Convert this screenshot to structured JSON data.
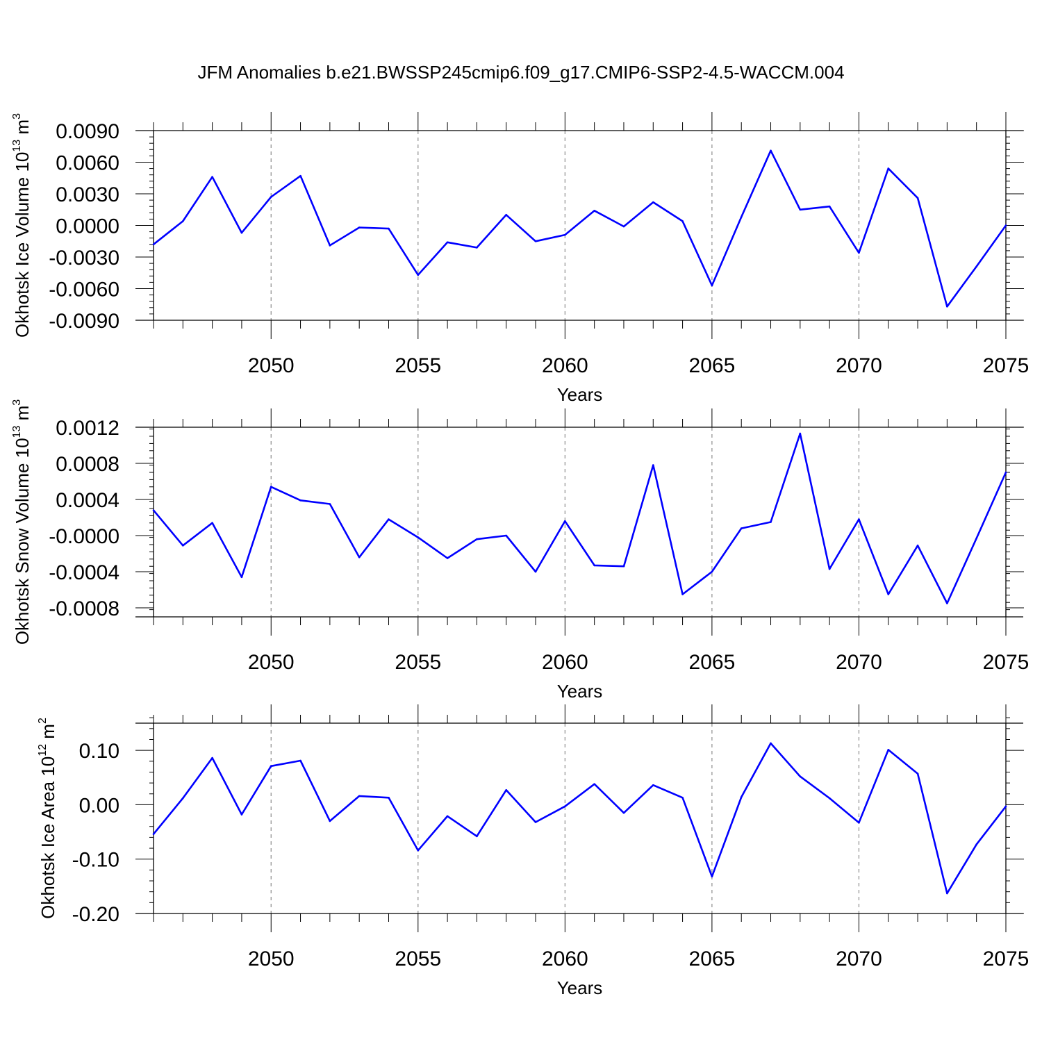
{
  "title": "JFM Anomalies b.e21.BWSSP245cmip6.f09_g17.CMIP6-SSP2-4.5-WACCM.004",
  "colors": {
    "line": "#0000ff",
    "grid": "#8c8c8c",
    "axis": "#000000"
  },
  "chart_data": [
    {
      "type": "line",
      "ylabel": "Okhotsk Ice Volume",
      "yunit_base": "10",
      "yunit_exp": "13",
      "yunit_m": "m",
      "yunit_m_exp": "3",
      "xlabel": "Years",
      "xlim": [
        2046,
        2075
      ],
      "ylim": [
        -0.009,
        0.009
      ],
      "xticks": [
        2050,
        2055,
        2060,
        2065,
        2070,
        2075
      ],
      "xtick_labels": [
        "2050",
        "2055",
        "2060",
        "2065",
        "2070",
        "2075"
      ],
      "yticks": [
        -0.009,
        -0.006,
        -0.003,
        0.0,
        0.003,
        0.006,
        0.009
      ],
      "ytick_labels": [
        "-0.0090",
        "-0.0060",
        "-0.0030",
        "0.0000",
        "0.0030",
        "0.0060",
        "0.0090"
      ],
      "x": [
        2046,
        2047,
        2048,
        2049,
        2050,
        2051,
        2052,
        2053,
        2054,
        2055,
        2056,
        2057,
        2058,
        2059,
        2060,
        2061,
        2062,
        2063,
        2064,
        2065,
        2066,
        2067,
        2068,
        2069,
        2070,
        2071,
        2072,
        2073,
        2074,
        2075
      ],
      "values": [
        -0.0018,
        0.0004,
        0.0046,
        -0.0007,
        0.0027,
        0.0047,
        -0.0019,
        -0.0002,
        -0.0003,
        -0.0047,
        -0.0016,
        -0.0021,
        0.001,
        -0.0015,
        -0.0009,
        0.0014,
        -0.0001,
        0.0022,
        0.0004,
        -0.0057,
        0.0008,
        0.0071,
        0.0015,
        0.0018,
        -0.0026,
        0.0054,
        0.0026,
        -0.0077,
        -0.0039,
        0.0
      ]
    },
    {
      "type": "line",
      "ylabel": "Okhotsk Snow Volume",
      "yunit_base": "10",
      "yunit_exp": "13",
      "yunit_m": "m",
      "yunit_m_exp": "3",
      "xlabel": "Years",
      "xlim": [
        2046,
        2075
      ],
      "ylim": [
        -0.0009,
        0.0012
      ],
      "xticks": [
        2050,
        2055,
        2060,
        2065,
        2070,
        2075
      ],
      "xtick_labels": [
        "2050",
        "2055",
        "2060",
        "2065",
        "2070",
        "2075"
      ],
      "yticks": [
        -0.0008,
        -0.0004,
        0.0,
        0.0004,
        0.0008,
        0.0012
      ],
      "ytick_labels": [
        "-0.0008",
        "-0.0004",
        "-0.0000",
        "0.0004",
        "0.0008",
        "0.0012"
      ],
      "x": [
        2046,
        2047,
        2048,
        2049,
        2050,
        2051,
        2052,
        2053,
        2054,
        2055,
        2056,
        2057,
        2058,
        2059,
        2060,
        2061,
        2062,
        2063,
        2064,
        2065,
        2066,
        2067,
        2068,
        2069,
        2070,
        2071,
        2072,
        2073,
        2074,
        2075
      ],
      "values": [
        0.00028,
        -0.00011,
        0.00014,
        -0.00046,
        0.00054,
        0.00039,
        0.00035,
        -0.00024,
        0.00018,
        -2e-05,
        -0.00025,
        -4e-05,
        0.0,
        -0.0004,
        0.00016,
        -0.00033,
        -0.00034,
        0.00078,
        -0.00065,
        -0.0004,
        8e-05,
        0.00015,
        0.00113,
        -0.00037,
        0.00018,
        -0.00065,
        -0.00011,
        -0.00075,
        -3e-05,
        0.0007
      ]
    },
    {
      "type": "line",
      "ylabel": "Okhotsk Ice Area",
      "yunit_base": "10",
      "yunit_exp": "12",
      "yunit_m": "m",
      "yunit_m_exp": "2",
      "xlabel": "Years",
      "xlim": [
        2046,
        2075
      ],
      "ylim": [
        -0.2,
        0.15
      ],
      "xticks": [
        2050,
        2055,
        2060,
        2065,
        2070,
        2075
      ],
      "xtick_labels": [
        "2050",
        "2055",
        "2060",
        "2065",
        "2070",
        "2075"
      ],
      "yticks": [
        -0.2,
        -0.1,
        0.0,
        0.1
      ],
      "ytick_labels": [
        "-0.20",
        "-0.10",
        "0.00",
        "0.10"
      ],
      "x": [
        2046,
        2047,
        2048,
        2049,
        2050,
        2051,
        2052,
        2053,
        2054,
        2055,
        2056,
        2057,
        2058,
        2059,
        2060,
        2061,
        2062,
        2063,
        2064,
        2065,
        2066,
        2067,
        2068,
        2069,
        2070,
        2071,
        2072,
        2073,
        2074,
        2075
      ],
      "values": [
        -0.054,
        0.012,
        0.086,
        -0.018,
        0.071,
        0.081,
        -0.03,
        0.016,
        0.013,
        -0.084,
        -0.021,
        -0.058,
        0.027,
        -0.032,
        -0.003,
        0.038,
        -0.015,
        0.036,
        0.013,
        -0.132,
        0.014,
        0.113,
        0.052,
        0.012,
        -0.033,
        0.101,
        0.057,
        -0.163,
        -0.073,
        -0.003
      ]
    }
  ]
}
